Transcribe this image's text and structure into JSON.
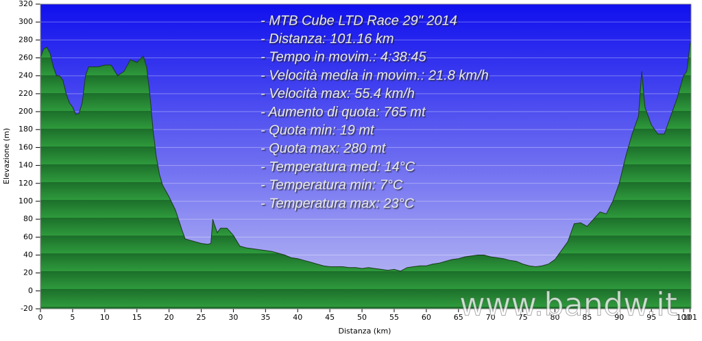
{
  "chart_data": {
    "type": "area",
    "xlabel": "Distanza  (km)",
    "ylabel": "Elevazione (m)",
    "annotations": [
      "- MTB Cube LTD Race 29\" 2014",
      "- Distanza: 101.16 km",
      "- Tempo in movim.: 4:38:45",
      "- Velocità media in movim.: 21.8 km/h",
      "- Velocità max: 55.4 km/h",
      "- Aumento di quota: 765 mt",
      "- Quota min: 19 mt",
      "- Quota max: 280 mt",
      "- Temperatura med: 14°C",
      "- Temperatura min: 7°C",
      "- Temperatura max: 23°C"
    ],
    "watermark": "www.bandw.it",
    "color": "#2e9a3c",
    "background_color": "#1010ee",
    "grid": true,
    "xlim": [
      0,
      101.16
    ],
    "ylim": [
      -20,
      320
    ],
    "xticks": [
      0,
      5,
      10,
      15,
      20,
      25,
      30,
      35,
      40,
      45,
      50,
      55,
      60,
      65,
      70,
      75,
      80,
      85,
      90,
      95,
      100,
      101
    ],
    "yticks": [
      -20,
      0,
      20,
      40,
      60,
      80,
      100,
      120,
      140,
      160,
      180,
      200,
      220,
      240,
      260,
      280,
      300,
      320
    ],
    "x": [
      0,
      0.5,
      1,
      1.5,
      2,
      2.5,
      3,
      3.5,
      4,
      4.5,
      5,
      5.5,
      6,
      6.5,
      7,
      7.5,
      8,
      9,
      10,
      11,
      12,
      13,
      14,
      15,
      16,
      16.5,
      17,
      17.5,
      18,
      18.5,
      19,
      20,
      21,
      22,
      22.5,
      23,
      24,
      25,
      26,
      26.5,
      26.8,
      27,
      27.5,
      28,
      29,
      30,
      31,
      32,
      33,
      34,
      35,
      36,
      37,
      38,
      39,
      40,
      41,
      42,
      43,
      44,
      45,
      46,
      47,
      48,
      49,
      50,
      51,
      52,
      53,
      54,
      55,
      56,
      57,
      58,
      59,
      60,
      61,
      62,
      63,
      64,
      65,
      66,
      67,
      68,
      69,
      70,
      71,
      72,
      73,
      74,
      75,
      76,
      77,
      78,
      79,
      80,
      81,
      82,
      83,
      84,
      85,
      86,
      87,
      88,
      89,
      90,
      91,
      92,
      93,
      93.5,
      94,
      95,
      96,
      97,
      98,
      99,
      100,
      100.5,
      101,
      101.16
    ],
    "values": [
      260,
      270,
      272,
      265,
      250,
      240,
      240,
      235,
      220,
      210,
      205,
      197,
      198,
      210,
      240,
      250,
      250,
      250,
      252,
      252,
      240,
      245,
      258,
      255,
      262,
      250,
      220,
      180,
      150,
      130,
      118,
      105,
      90,
      68,
      58,
      57,
      55,
      53,
      52,
      53,
      80,
      75,
      65,
      70,
      70,
      62,
      50,
      48,
      47,
      46,
      45,
      44,
      42,
      40,
      37,
      36,
      34,
      32,
      30,
      28,
      27,
      27,
      27,
      26,
      26,
      25,
      26,
      25,
      24,
      23,
      24,
      22,
      26,
      27,
      28,
      28,
      30,
      31,
      33,
      35,
      36,
      38,
      39,
      40,
      40,
      38,
      37,
      36,
      34,
      33,
      30,
      28,
      27,
      28,
      30,
      35,
      45,
      55,
      75,
      76,
      72,
      80,
      88,
      86,
      100,
      120,
      150,
      175,
      195,
      245,
      205,
      185,
      175,
      175,
      195,
      215,
      240,
      245,
      275,
      278
    ]
  }
}
